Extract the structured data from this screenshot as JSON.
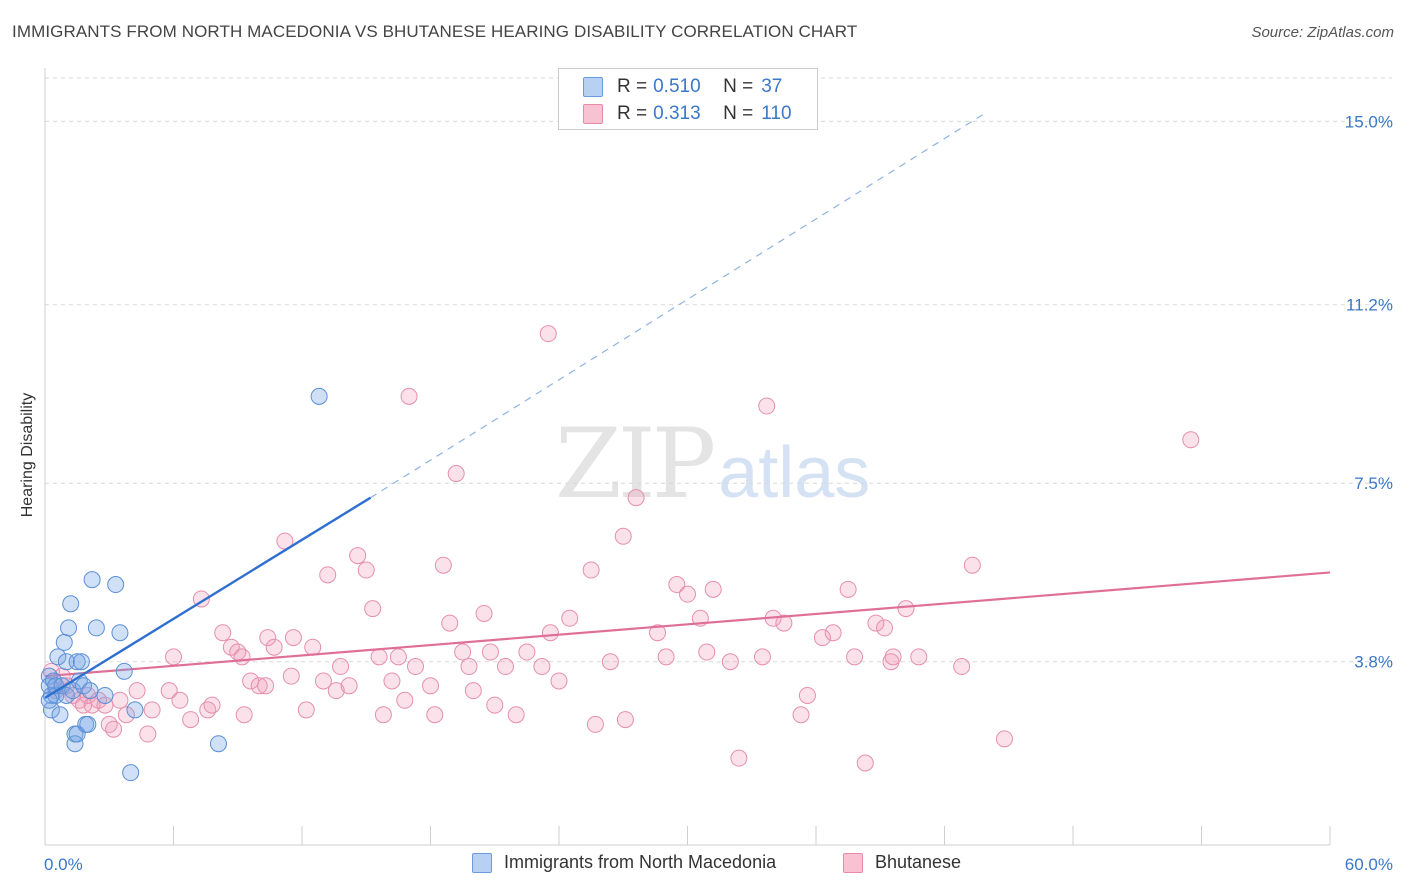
{
  "title": "IMMIGRANTS FROM NORTH MACEDONIA VS BHUTANESE HEARING DISABILITY CORRELATION CHART",
  "source": "Source: ZipAtlas.com",
  "watermark": {
    "zip": "ZIP",
    "atlas": "atlas"
  },
  "legend": {
    "r_label": "R =",
    "n_label": "N =",
    "rows": [
      {
        "r": "0.510",
        "n": "37",
        "fill": "#b8d0f2",
        "stroke": "#6a9be0"
      },
      {
        "r": "0.313",
        "n": "110",
        "fill": "#f7c3d3",
        "stroke": "#e98aa8"
      }
    ]
  },
  "bottom_legend": [
    {
      "label": "Immigrants from North Macedonia",
      "fill": "#b8d0f2",
      "stroke": "#6a9be0"
    },
    {
      "label": "Bhutanese",
      "fill": "#f7c3d3",
      "stroke": "#e98aa8"
    }
  ],
  "colors": {
    "blue_point_fill": "rgba(120,165,230,0.35)",
    "blue_point_stroke": "#5b8fd6",
    "blue_line": "#2f6fcf",
    "pink_point_fill": "rgba(240,150,180,0.28)",
    "pink_point_stroke": "#e58fae",
    "pink_line": "#e06f98",
    "grid": "#d8d8d8",
    "tick_label": "#3a78c8"
  },
  "chart_data": {
    "type": "scatter",
    "title": "IMMIGRANTS FROM NORTH MACEDONIA VS BHUTANESE HEARING DISABILITY CORRELATION CHART",
    "xlabel": "",
    "ylabel": "Hearing Disability",
    "xlim": [
      0,
      60
    ],
    "ylim": [
      0,
      15.9
    ],
    "x_tick_labels": [
      "0.0%",
      "60.0%"
    ],
    "y_ticks": [
      3.8,
      7.5,
      11.2,
      15.0
    ],
    "y_tick_labels": [
      "3.8%",
      "7.5%",
      "11.2%",
      "15.0%"
    ],
    "grid": true,
    "legend_position": "top-center",
    "series": [
      {
        "name": "Immigrants from North Macedonia",
        "points": [
          [
            0.2,
            3.5
          ],
          [
            0.2,
            3.3
          ],
          [
            0.3,
            3.1
          ],
          [
            0.3,
            2.8
          ],
          [
            0.4,
            3.4
          ],
          [
            0.5,
            3.1
          ],
          [
            0.5,
            3.3
          ],
          [
            0.6,
            3.9
          ],
          [
            0.7,
            2.7
          ],
          [
            0.8,
            3.3
          ],
          [
            0.9,
            4.2
          ],
          [
            1.0,
            3.1
          ],
          [
            1.0,
            3.8
          ],
          [
            1.1,
            4.5
          ],
          [
            1.2,
            5.0
          ],
          [
            1.3,
            3.2
          ],
          [
            1.4,
            2.3
          ],
          [
            1.4,
            2.1
          ],
          [
            1.5,
            3.8
          ],
          [
            1.5,
            2.3
          ],
          [
            1.6,
            3.4
          ],
          [
            1.7,
            3.8
          ],
          [
            1.8,
            3.3
          ],
          [
            1.9,
            2.5
          ],
          [
            2.0,
            2.5
          ],
          [
            2.1,
            3.2
          ],
          [
            2.2,
            5.5
          ],
          [
            2.4,
            4.5
          ],
          [
            2.8,
            3.1
          ],
          [
            3.3,
            5.4
          ],
          [
            3.5,
            4.4
          ],
          [
            3.7,
            3.6
          ],
          [
            4.0,
            1.5
          ],
          [
            4.2,
            2.8
          ],
          [
            8.1,
            2.1
          ],
          [
            12.8,
            9.3
          ],
          [
            0.2,
            3.0
          ]
        ],
        "trend": {
          "x0": 0.0,
          "y0": 3.05,
          "x1": 15.2,
          "y1": 7.2,
          "dash_x1": 44.0,
          "dash_y1": 15.2
        }
      },
      {
        "name": "Bhutanese",
        "points": [
          [
            0.3,
            3.6
          ],
          [
            0.5,
            3.2
          ],
          [
            0.8,
            3.5
          ],
          [
            1.0,
            3.3
          ],
          [
            1.3,
            3.1
          ],
          [
            1.6,
            3.0
          ],
          [
            1.8,
            2.9
          ],
          [
            2.0,
            3.1
          ],
          [
            2.2,
            2.9
          ],
          [
            2.5,
            3.0
          ],
          [
            2.8,
            2.9
          ],
          [
            3.0,
            2.5
          ],
          [
            3.2,
            2.4
          ],
          [
            3.5,
            3.0
          ],
          [
            3.8,
            2.7
          ],
          [
            4.3,
            3.2
          ],
          [
            4.8,
            2.3
          ],
          [
            5.0,
            2.8
          ],
          [
            5.8,
            3.2
          ],
          [
            6.0,
            3.9
          ],
          [
            6.3,
            3.0
          ],
          [
            6.8,
            2.6
          ],
          [
            7.3,
            5.1
          ],
          [
            7.6,
            2.8
          ],
          [
            7.8,
            2.9
          ],
          [
            8.3,
            4.4
          ],
          [
            8.7,
            4.1
          ],
          [
            9.0,
            4.0
          ],
          [
            9.2,
            3.9
          ],
          [
            9.3,
            2.7
          ],
          [
            9.6,
            3.4
          ],
          [
            10.0,
            3.3
          ],
          [
            10.3,
            3.3
          ],
          [
            10.4,
            4.3
          ],
          [
            10.7,
            4.1
          ],
          [
            11.2,
            6.3
          ],
          [
            11.5,
            3.5
          ],
          [
            11.6,
            4.3
          ],
          [
            12.2,
            2.8
          ],
          [
            12.5,
            4.1
          ],
          [
            13.0,
            3.4
          ],
          [
            13.2,
            5.6
          ],
          [
            13.6,
            3.2
          ],
          [
            13.8,
            3.7
          ],
          [
            14.2,
            3.3
          ],
          [
            14.6,
            6.0
          ],
          [
            15.0,
            5.7
          ],
          [
            15.3,
            4.9
          ],
          [
            15.6,
            3.9
          ],
          [
            15.8,
            2.7
          ],
          [
            16.2,
            3.4
          ],
          [
            16.5,
            3.9
          ],
          [
            16.8,
            3.0
          ],
          [
            17.0,
            9.3
          ],
          [
            17.3,
            3.7
          ],
          [
            18.0,
            3.3
          ],
          [
            18.2,
            2.7
          ],
          [
            18.6,
            5.8
          ],
          [
            18.9,
            4.6
          ],
          [
            19.2,
            7.7
          ],
          [
            19.5,
            4.0
          ],
          [
            19.8,
            3.7
          ],
          [
            20.0,
            3.2
          ],
          [
            20.5,
            4.8
          ],
          [
            20.8,
            4.0
          ],
          [
            21.0,
            2.9
          ],
          [
            21.5,
            3.7
          ],
          [
            22.0,
            2.7
          ],
          [
            22.5,
            4.0
          ],
          [
            23.2,
            3.7
          ],
          [
            23.5,
            10.6
          ],
          [
            23.6,
            4.4
          ],
          [
            24.0,
            3.4
          ],
          [
            24.5,
            4.7
          ],
          [
            25.5,
            5.7
          ],
          [
            25.7,
            2.5
          ],
          [
            26.4,
            3.8
          ],
          [
            27.0,
            6.4
          ],
          [
            27.1,
            2.6
          ],
          [
            27.6,
            7.2
          ],
          [
            28.6,
            4.4
          ],
          [
            29.0,
            3.9
          ],
          [
            29.5,
            5.4
          ],
          [
            30.0,
            5.2
          ],
          [
            30.6,
            4.7
          ],
          [
            30.9,
            4.0
          ],
          [
            31.2,
            5.3
          ],
          [
            32.0,
            3.8
          ],
          [
            32.4,
            1.8
          ],
          [
            33.5,
            3.9
          ],
          [
            33.7,
            9.1
          ],
          [
            34.0,
            4.7
          ],
          [
            34.5,
            4.6
          ],
          [
            35.3,
            2.7
          ],
          [
            35.6,
            3.1
          ],
          [
            36.3,
            4.3
          ],
          [
            36.8,
            4.4
          ],
          [
            37.5,
            5.3
          ],
          [
            37.8,
            3.9
          ],
          [
            38.3,
            1.7
          ],
          [
            38.8,
            4.6
          ],
          [
            39.2,
            4.5
          ],
          [
            39.5,
            3.8
          ],
          [
            39.6,
            3.9
          ],
          [
            40.2,
            4.9
          ],
          [
            40.8,
            3.9
          ],
          [
            42.8,
            3.7
          ],
          [
            43.3,
            5.8
          ],
          [
            44.8,
            2.2
          ],
          [
            53.5,
            8.4
          ]
        ],
        "trend": {
          "x0": 0.0,
          "y0": 3.5,
          "x1": 60.0,
          "y1": 5.65
        }
      }
    ]
  }
}
